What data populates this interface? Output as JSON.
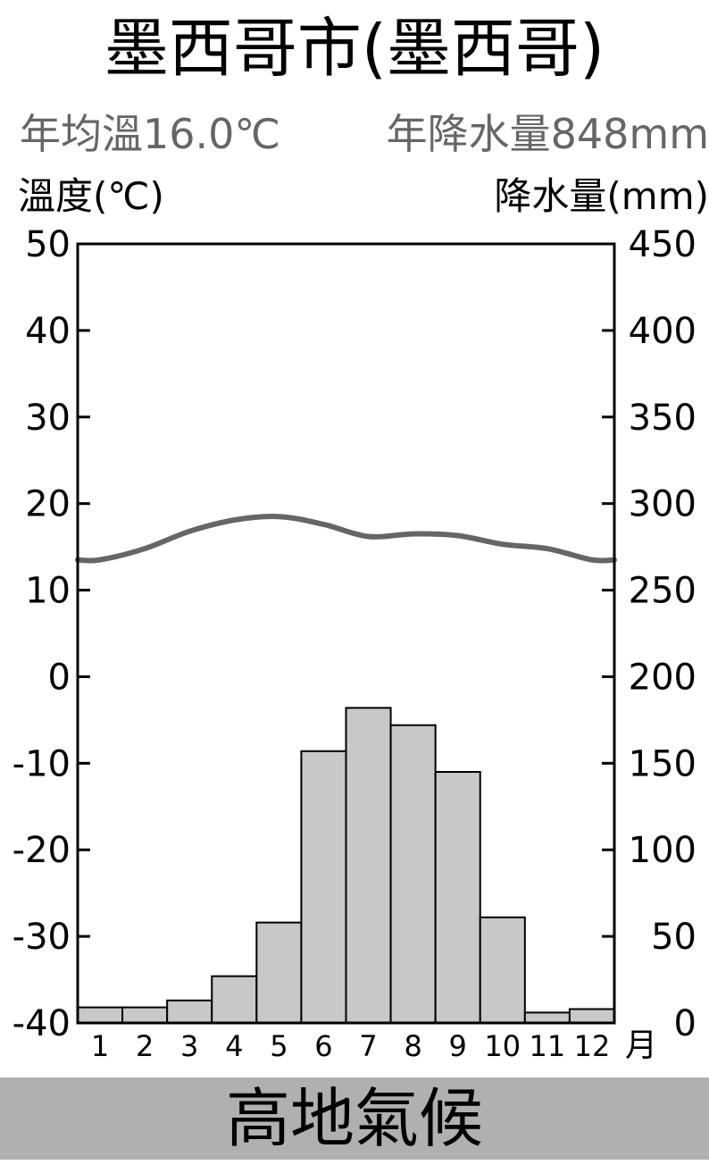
{
  "header": {
    "title": "墨西哥市(墨西哥)",
    "annual_temp": "年均溫16.0℃",
    "annual_precip": "年降水量848mm"
  },
  "axes": {
    "left_title": "溫度(℃)",
    "right_title": "降水量(mm)",
    "month_unit": "月"
  },
  "footer": {
    "climate_type": "高地氣候"
  },
  "chart_data": {
    "type": "bar",
    "categories": [
      "1",
      "2",
      "3",
      "4",
      "5",
      "6",
      "7",
      "8",
      "9",
      "10",
      "11",
      "12"
    ],
    "series": [
      {
        "kind": "bar",
        "axis": "right",
        "values": [
          9,
          9,
          13,
          27,
          58,
          157,
          182,
          172,
          145,
          61,
          6,
          8
        ]
      },
      {
        "kind": "line",
        "axis": "left",
        "values": [
          13.5,
          14.8,
          16.8,
          18.1,
          18.5,
          17.6,
          16.2,
          16.5,
          16.3,
          15.3,
          14.8,
          13.5
        ]
      }
    ],
    "left_axis": {
      "ylim": [
        -40,
        50
      ],
      "ticks": [
        "50",
        "40",
        "30",
        "20",
        "10",
        "0",
        "-10",
        "-20",
        "-30",
        "-40"
      ]
    },
    "right_axis": {
      "ylim": [
        0,
        450
      ],
      "ticks": [
        "450",
        "400",
        "350",
        "300",
        "250",
        "200",
        "150",
        "100",
        "50",
        "0"
      ]
    },
    "grid": false,
    "colors": {
      "bar_fill": "#c8c8c8",
      "bar_stroke": "#000000",
      "line": "#666666",
      "footer_bg": "#b0b0b0"
    }
  }
}
